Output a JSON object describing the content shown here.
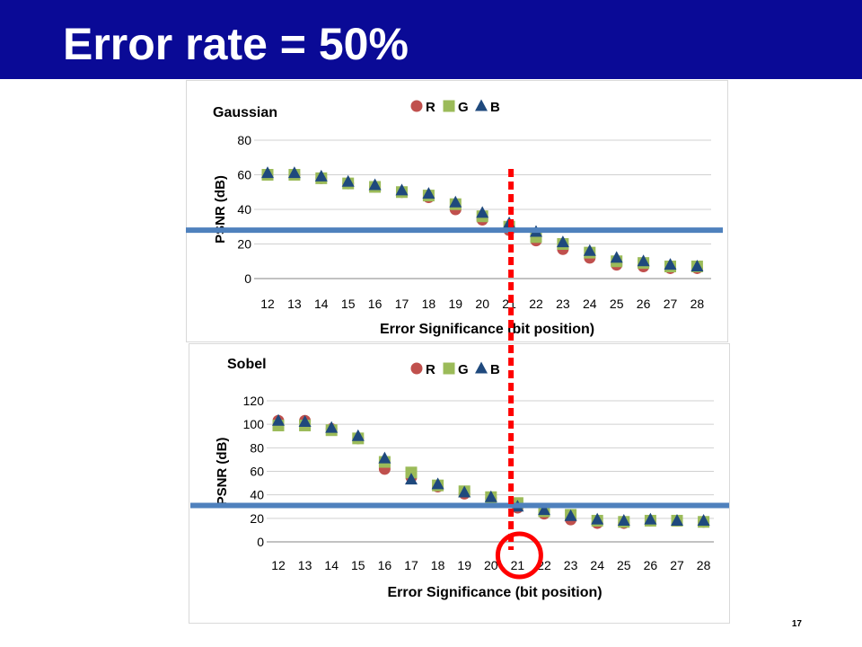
{
  "slide": {
    "title": "Error rate = 50%",
    "page_number": "17"
  },
  "colors": {
    "title_bar": "#0a0a96",
    "R": "#c0504d",
    "G": "#9bbb59",
    "B": "#1f497d",
    "threshold_line": "#4f81bd",
    "marker_line": "#ff0000"
  },
  "chart_data": [
    {
      "type": "scatter",
      "title": "Gaussian",
      "xlabel": "Error Significance  (bit position)",
      "ylabel": "PSNR (dB)",
      "x": [
        12,
        13,
        14,
        15,
        16,
        17,
        18,
        19,
        20,
        21,
        22,
        23,
        24,
        25,
        26,
        27,
        28
      ],
      "ylim": [
        0,
        80
      ],
      "yticks": [
        0,
        20,
        40,
        60,
        80
      ],
      "grid": true,
      "legend": "top",
      "series": [
        {
          "name": "R",
          "marker": "circle",
          "values": [
            60,
            60,
            58,
            55,
            53,
            50,
            47,
            40,
            34,
            28,
            22,
            17,
            12,
            8,
            7,
            6,
            6
          ]
        },
        {
          "name": "G",
          "marker": "square",
          "values": [
            60,
            60,
            58,
            55,
            53,
            50,
            48,
            43,
            36,
            30,
            24,
            20,
            15,
            10,
            9,
            7,
            7
          ]
        },
        {
          "name": "B",
          "marker": "triangle",
          "values": [
            61,
            61,
            59,
            56,
            54,
            51,
            49,
            44,
            38,
            32,
            27,
            21,
            16,
            12,
            10,
            8,
            7
          ]
        }
      ],
      "threshold_y": 28,
      "marker_x": 21
    },
    {
      "type": "scatter",
      "title": "Sobel",
      "xlabel": "Error Significance  (bit position)",
      "ylabel": "PSNR (dB)",
      "x": [
        12,
        13,
        14,
        15,
        16,
        17,
        18,
        19,
        20,
        21,
        22,
        23,
        24,
        25,
        26,
        27,
        28
      ],
      "ylim": [
        0,
        120
      ],
      "yticks": [
        0,
        20,
        40,
        60,
        80,
        100,
        120
      ],
      "grid": true,
      "legend": "top",
      "series": [
        {
          "name": "R",
          "marker": "circle",
          "values": [
            103,
            103,
            96,
            88,
            62,
            55,
            47,
            41,
            37,
            29,
            24,
            19,
            16,
            16,
            18,
            18,
            17
          ]
        },
        {
          "name": "G",
          "marker": "square",
          "values": [
            99,
            99,
            95,
            88,
            68,
            59,
            48,
            43,
            38,
            33,
            26,
            23,
            18,
            17,
            18,
            18,
            17
          ]
        },
        {
          "name": "B",
          "marker": "triangle",
          "values": [
            103,
            102,
            97,
            90,
            71,
            53,
            49,
            42,
            38,
            30,
            27,
            22,
            19,
            18,
            19,
            18,
            18
          ]
        }
      ],
      "threshold_y": 31,
      "marker_x": 21
    }
  ]
}
